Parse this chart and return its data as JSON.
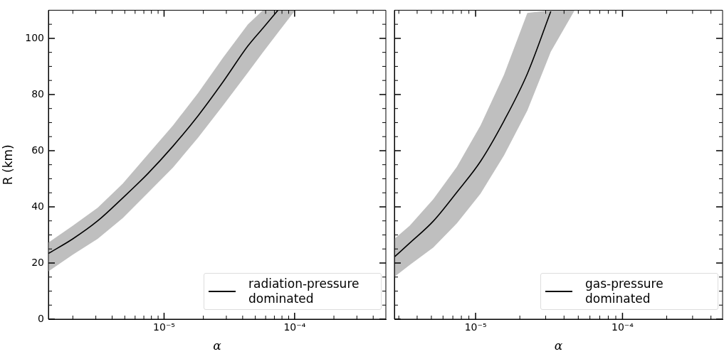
{
  "chart_data": [
    {
      "type": "line",
      "xlabel": "α",
      "ylabel": "R (km)",
      "log": "x",
      "legend": "bottom right",
      "xlim": [
        1.3e-06,
        0.0005
      ],
      "ylim": [
        0,
        110
      ],
      "xticks": [
        {
          "value": 2e-06,
          "label": null
        },
        {
          "value": 3e-06,
          "label": null
        },
        {
          "value": 4e-06,
          "label": null
        },
        {
          "value": 5e-06,
          "label": null
        },
        {
          "value": 6e-06,
          "label": null
        },
        {
          "value": 7e-06,
          "label": null
        },
        {
          "value": 8e-06,
          "label": null
        },
        {
          "value": 9e-06,
          "label": null
        },
        {
          "value": 1e-05,
          "label": "10⁻⁵"
        },
        {
          "value": 2e-05,
          "label": null
        },
        {
          "value": 3e-05,
          "label": null
        },
        {
          "value": 4e-05,
          "label": null
        },
        {
          "value": 5e-05,
          "label": null
        },
        {
          "value": 6e-05,
          "label": null
        },
        {
          "value": 7e-05,
          "label": null
        },
        {
          "value": 8e-05,
          "label": null
        },
        {
          "value": 9e-05,
          "label": null
        },
        {
          "value": 0.0001,
          "label": "10⁻⁴"
        },
        {
          "value": 0.0002,
          "label": null
        },
        {
          "value": 0.0003,
          "label": null
        },
        {
          "value": 0.0004,
          "label": null
        }
      ],
      "yticks": [
        0,
        {
          "value": 5,
          "label": null
        },
        {
          "value": 10,
          "label": null
        },
        {
          "value": 15,
          "label": null
        },
        20,
        {
          "value": 25,
          "label": null
        },
        {
          "value": 30,
          "label": null
        },
        {
          "value": 35,
          "label": null
        },
        40,
        {
          "value": 45,
          "label": null
        },
        {
          "value": 50,
          "label": null
        },
        {
          "value": 55,
          "label": null
        },
        60,
        {
          "value": 65,
          "label": null
        },
        {
          "value": 70,
          "label": null
        },
        {
          "value": 75,
          "label": null
        },
        80,
        {
          "value": 85,
          "label": null
        },
        {
          "value": 90,
          "label": null
        },
        {
          "value": 95,
          "label": null
        },
        100,
        {
          "value": 105,
          "label": null
        }
      ],
      "series": [
        {
          "name": "radiation-pressure dominated",
          "color": "#000000",
          "x": [
            1.3e-06,
            2e-06,
            3.1e-06,
            4.83e-06,
            7.5e-06,
            1.17e-05,
            1.82e-05,
            2.82e-05,
            4.39e-05,
            5.71e-05,
            7.45e-05,
            0.000101
          ],
          "values": [
            23.4,
            28.6,
            35.0,
            43.2,
            51.8,
            61.6,
            72.4,
            84.4,
            97.3,
            103.6,
            110,
            null
          ],
          "lower": [
            17,
            23,
            28.6,
            36,
            44.9,
            54,
            64.6,
            76,
            87.8,
            95,
            102,
            110
          ],
          "upper": [
            27.3,
            33.3,
            39.7,
            48.3,
            58.6,
            69,
            80.5,
            93,
            105,
            110,
            110,
            110
          ]
        }
      ]
    },
    {
      "type": "line",
      "xlabel": "α",
      "log": "x",
      "legend": "bottom right",
      "tick_labels": "x",
      "xlim": [
        2.8e-06,
        0.00048
      ],
      "ylim": [
        0,
        110
      ],
      "xticks": [
        {
          "value": 3e-06,
          "label": null
        },
        {
          "value": 4e-06,
          "label": null
        },
        {
          "value": 5e-06,
          "label": null
        },
        {
          "value": 6e-06,
          "label": null
        },
        {
          "value": 7e-06,
          "label": null
        },
        {
          "value": 8e-06,
          "label": null
        },
        {
          "value": 9e-06,
          "label": null
        },
        {
          "value": 1e-05,
          "label": "10⁻⁵"
        },
        {
          "value": 2e-05,
          "label": null
        },
        {
          "value": 3e-05,
          "label": null
        },
        {
          "value": 4e-05,
          "label": null
        },
        {
          "value": 5e-05,
          "label": null
        },
        {
          "value": 6e-05,
          "label": null
        },
        {
          "value": 7e-05,
          "label": null
        },
        {
          "value": 8e-05,
          "label": null
        },
        {
          "value": 9e-05,
          "label": null
        },
        {
          "value": 0.0001,
          "label": "10⁻⁴"
        },
        {
          "value": 0.0002,
          "label": null
        },
        {
          "value": 0.0003,
          "label": null
        },
        {
          "value": 0.0004,
          "label": null
        }
      ],
      "yticks": [
        0,
        {
          "value": 5,
          "label": null
        },
        {
          "value": 10,
          "label": null
        },
        {
          "value": 15,
          "label": null
        },
        20,
        {
          "value": 25,
          "label": null
        },
        {
          "value": 30,
          "label": null
        },
        {
          "value": 35,
          "label": null
        },
        40,
        {
          "value": 45,
          "label": null
        },
        {
          "value": 50,
          "label": null
        },
        {
          "value": 55,
          "label": null
        },
        60,
        {
          "value": 65,
          "label": null
        },
        {
          "value": 70,
          "label": null
        },
        {
          "value": 75,
          "label": null
        },
        80,
        {
          "value": 85,
          "label": null
        },
        {
          "value": 90,
          "label": null
        },
        {
          "value": 95,
          "label": null
        },
        100,
        {
          "value": 105,
          "label": null
        }
      ],
      "series": [
        {
          "name": "gas-pressure dominated",
          "color": "#000000",
          "x": [
            2.82e-06,
            3.56e-06,
            5.15e-06,
            7.45e-06,
            1.08e-05,
            1.56e-05,
            2.25e-05,
            3.25e-05,
            4.7e-05
          ],
          "values": [
            22.3,
            27.1,
            34.9,
            45.2,
            56.2,
            70.6,
            87.4,
            109.6,
            null
          ],
          "lower": [
            15.2,
            19.3,
            25.5,
            34.1,
            44.7,
            58.3,
            74.3,
            95.2,
            109.8
          ],
          "upper": [
            28.7,
            33.3,
            42.7,
            54.2,
            69,
            87,
            109,
            110,
            110
          ]
        }
      ]
    }
  ]
}
